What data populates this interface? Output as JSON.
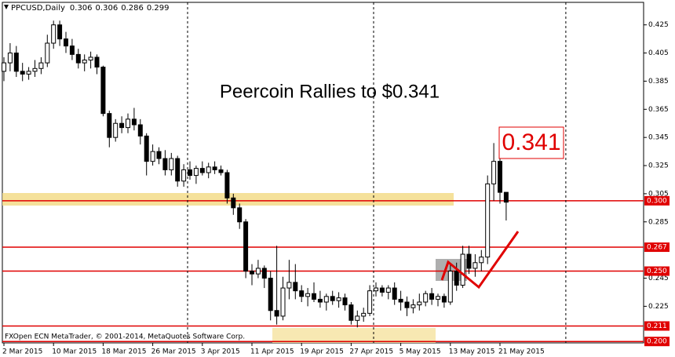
{
  "chart_data": {
    "type": "candlestick",
    "symbol": "PPCUSD,Daily",
    "title": "Peercoin Rallies to $0.341",
    "annotation": "0.341",
    "copyright": "FXOpen ECN MetaTrader, © 2001-2014, MetaQuotes Software Corp.",
    "categories": [
      "2 Mar 2015",
      null,
      null,
      null,
      null,
      null,
      null,
      null,
      "10 Mar 2015",
      null,
      null,
      null,
      null,
      null,
      null,
      null,
      "18 Mar 2015",
      null,
      null,
      null,
      null,
      null,
      null,
      null,
      "26 Mar 2015",
      null,
      null,
      null,
      null,
      null,
      null,
      null,
      "3 Apr 2015",
      null,
      null,
      null,
      null,
      null,
      null,
      null,
      "11 Apr 2015",
      null,
      null,
      null,
      null,
      null,
      null,
      null,
      "19 Apr 2015",
      null,
      null,
      null,
      null,
      null,
      null,
      null,
      "27 Apr 2015",
      null,
      null,
      null,
      null,
      null,
      null,
      null,
      "5 May 2015",
      null,
      null,
      null,
      null,
      null,
      null,
      null,
      "13 May 2015",
      null,
      null,
      null,
      null,
      null,
      null,
      null,
      "21 May 2015",
      null
    ],
    "open": [
      0.392,
      0.398,
      0.405,
      0.392,
      0.39,
      0.392,
      0.394,
      0.398,
      0.412,
      0.425,
      0.415,
      0.41,
      0.404,
      0.398,
      0.4,
      0.402,
      0.395,
      0.362,
      0.345,
      0.355,
      0.352,
      0.358,
      0.354,
      0.346,
      0.328,
      0.335,
      0.33,
      0.322,
      0.33,
      0.314,
      0.322,
      0.318,
      0.323,
      0.32,
      0.324,
      0.322,
      0.32,
      0.302,
      0.295,
      0.285,
      0.25,
      0.248,
      0.252,
      0.245,
      0.222,
      0.218,
      0.238,
      0.242,
      0.236,
      0.232,
      0.234,
      0.23,
      0.228,
      0.232,
      0.229,
      0.231,
      0.226,
      0.215,
      0.218,
      0.22,
      0.236,
      0.238,
      0.235,
      0.238,
      0.23,
      0.228,
      0.224,
      0.226,
      0.228,
      0.234,
      0.23,
      0.232,
      0.228,
      0.25,
      0.24,
      0.262,
      0.252,
      0.256,
      0.26,
      0.312,
      0.328,
      0.306
    ],
    "high": [
      0.402,
      0.412,
      0.41,
      0.398,
      0.395,
      0.4,
      0.402,
      0.418,
      0.428,
      0.428,
      0.42,
      0.415,
      0.408,
      0.404,
      0.406,
      0.404,
      0.396,
      0.364,
      0.358,
      0.36,
      0.362,
      0.366,
      0.358,
      0.348,
      0.34,
      0.338,
      0.336,
      0.334,
      0.332,
      0.326,
      0.328,
      0.325,
      0.328,
      0.327,
      0.328,
      0.325,
      0.322,
      0.305,
      0.298,
      0.287,
      0.255,
      0.258,
      0.254,
      0.25,
      0.268,
      0.246,
      0.258,
      0.255,
      0.24,
      0.238,
      0.242,
      0.236,
      0.234,
      0.236,
      0.235,
      0.234,
      0.228,
      0.222,
      0.224,
      0.24,
      0.242,
      0.24,
      0.24,
      0.242,
      0.236,
      0.232,
      0.23,
      0.234,
      0.236,
      0.238,
      0.234,
      0.234,
      0.255,
      0.256,
      0.268,
      0.268,
      0.262,
      0.265,
      0.318,
      0.341,
      0.33,
      0.306
    ],
    "low": [
      0.385,
      0.392,
      0.388,
      0.385,
      0.386,
      0.388,
      0.39,
      0.395,
      0.408,
      0.41,
      0.405,
      0.4,
      0.394,
      0.392,
      0.394,
      0.39,
      0.36,
      0.338,
      0.342,
      0.348,
      0.348,
      0.35,
      0.34,
      0.318,
      0.325,
      0.326,
      0.318,
      0.318,
      0.31,
      0.31,
      0.315,
      0.312,
      0.318,
      0.316,
      0.319,
      0.318,
      0.298,
      0.29,
      0.28,
      0.245,
      0.24,
      0.245,
      0.238,
      0.215,
      0.212,
      0.215,
      0.23,
      0.23,
      0.228,
      0.225,
      0.228,
      0.224,
      0.222,
      0.226,
      0.224,
      0.222,
      0.212,
      0.21,
      0.214,
      0.218,
      0.232,
      0.232,
      0.23,
      0.226,
      0.222,
      0.218,
      0.22,
      0.222,
      0.225,
      0.226,
      0.225,
      0.224,
      0.226,
      0.236,
      0.238,
      0.248,
      0.246,
      0.25,
      0.255,
      0.3,
      0.298,
      0.286
    ],
    "close": [
      0.398,
      0.405,
      0.392,
      0.39,
      0.392,
      0.394,
      0.398,
      0.412,
      0.425,
      0.415,
      0.41,
      0.404,
      0.398,
      0.4,
      0.402,
      0.395,
      0.362,
      0.345,
      0.355,
      0.352,
      0.358,
      0.354,
      0.346,
      0.328,
      0.335,
      0.33,
      0.322,
      0.33,
      0.314,
      0.322,
      0.318,
      0.323,
      0.32,
      0.324,
      0.322,
      0.32,
      0.302,
      0.295,
      0.285,
      0.25,
      0.248,
      0.252,
      0.245,
      0.222,
      0.218,
      0.238,
      0.242,
      0.236,
      0.232,
      0.234,
      0.23,
      0.228,
      0.232,
      0.229,
      0.231,
      0.226,
      0.215,
      0.218,
      0.22,
      0.236,
      0.238,
      0.235,
      0.238,
      0.23,
      0.228,
      0.224,
      0.226,
      0.228,
      0.234,
      0.23,
      0.232,
      0.228,
      0.25,
      0.24,
      0.262,
      0.252,
      0.256,
      0.26,
      0.312,
      0.328,
      0.306,
      0.299
    ],
    "ylim": [
      0.199,
      0.441
    ],
    "yticks": [
      0.225,
      0.245,
      0.285,
      0.305,
      0.325,
      0.345,
      0.365,
      0.385,
      0.405,
      0.425
    ],
    "levels": [
      {
        "value": 0.3,
        "label": "0.300"
      },
      {
        "value": 0.267,
        "label": "0.267"
      },
      {
        "value": 0.25,
        "label": "0.250"
      },
      {
        "value": 0.211,
        "label": "0.211"
      },
      {
        "value": 0.2,
        "label": "0.200"
      }
    ],
    "up_color": "#ffffff",
    "down_color": "#000000",
    "level_color": "#e00000"
  }
}
